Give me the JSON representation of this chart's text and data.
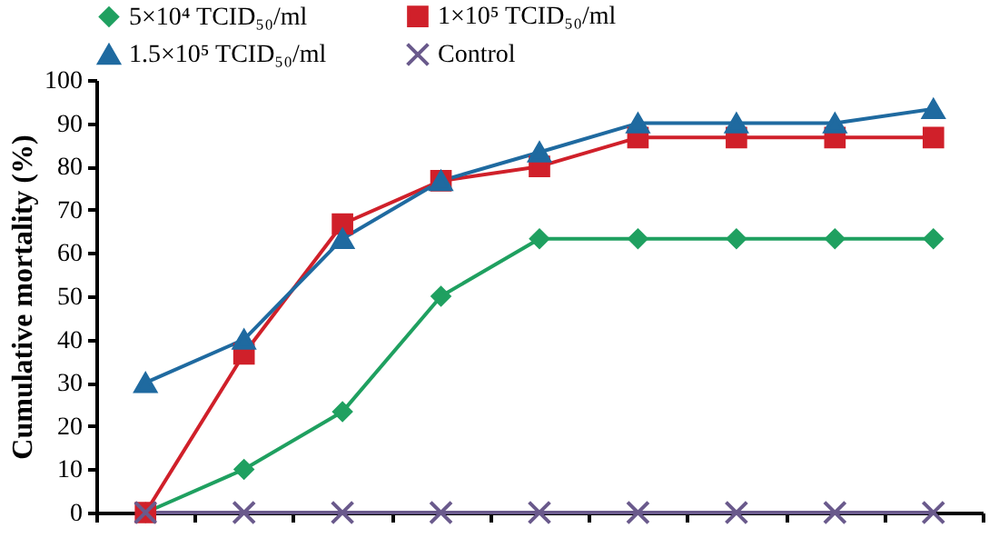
{
  "chart_data": {
    "type": "line",
    "ylabel": "Cumulative mortality (%)",
    "categories": [
      null,
      null,
      null,
      null,
      null,
      null,
      null,
      null,
      null
    ],
    "ylim": [
      0,
      100
    ],
    "yticks": [
      0,
      10,
      20,
      30,
      40,
      50,
      60,
      70,
      80,
      90,
      100
    ],
    "tick_labels": "y",
    "legend": "top",
    "line_style": "solid",
    "series": [
      {
        "name": "5×10⁴ TCID₅₀/ml",
        "color": "#1fa060",
        "marker": "diamond",
        "values": [
          0,
          10,
          23.3,
          50,
          63.3,
          63.3,
          63.3,
          63.3,
          63.3
        ]
      },
      {
        "name": "1×10⁵ TCID₅₀/ml",
        "color": "#d0202a",
        "marker": "square",
        "values": [
          0,
          36.7,
          66.7,
          76.7,
          80,
          86.7,
          86.7,
          86.7,
          86.7
        ]
      },
      {
        "name": "1.5×10⁵ TCID₅₀/ml",
        "color": "#1f6aa0",
        "marker": "triangle",
        "values": [
          30,
          40,
          63.3,
          76.7,
          83.3,
          90,
          90,
          90,
          93.3
        ]
      },
      {
        "name": "Control",
        "color": "#6a5a8c",
        "marker": "cross",
        "values": [
          0,
          0,
          0,
          0,
          0,
          0,
          0,
          0,
          0
        ]
      }
    ]
  }
}
